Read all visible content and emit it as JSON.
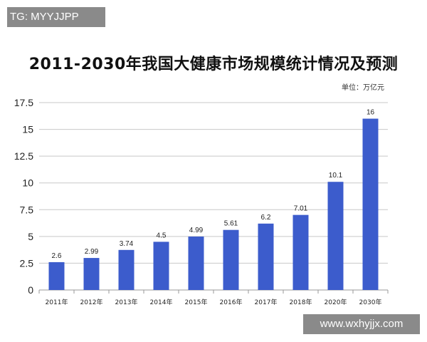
{
  "watermarks": {
    "top_left": "TG: MYYJJPP",
    "bottom_right": "www.wxhyjjx.com"
  },
  "chart_data": {
    "type": "bar",
    "title": "2011-2030年我国大健康市场规模统计情况及预测",
    "unit_label": "单位：万亿元",
    "categories": [
      "2011年",
      "2012年",
      "2013年",
      "2014年",
      "2015年",
      "2016年",
      "2017年",
      "2018年",
      "2020年",
      "2030年"
    ],
    "values": [
      2.6,
      2.99,
      3.74,
      4.5,
      4.99,
      5.61,
      6.2,
      7.01,
      10.1,
      16
    ],
    "value_labels": [
      "2.6",
      "2.99",
      "3.74",
      "4.5",
      "4.99",
      "5.61",
      "6.2",
      "7.01",
      "10.1",
      "16"
    ],
    "yticks": [
      "0",
      "2.5",
      "5",
      "7.5",
      "10",
      "12.5",
      "15",
      "17.5"
    ],
    "ylim": [
      0,
      17.5
    ],
    "grid": true,
    "bar_color": "#3c5ccc"
  }
}
